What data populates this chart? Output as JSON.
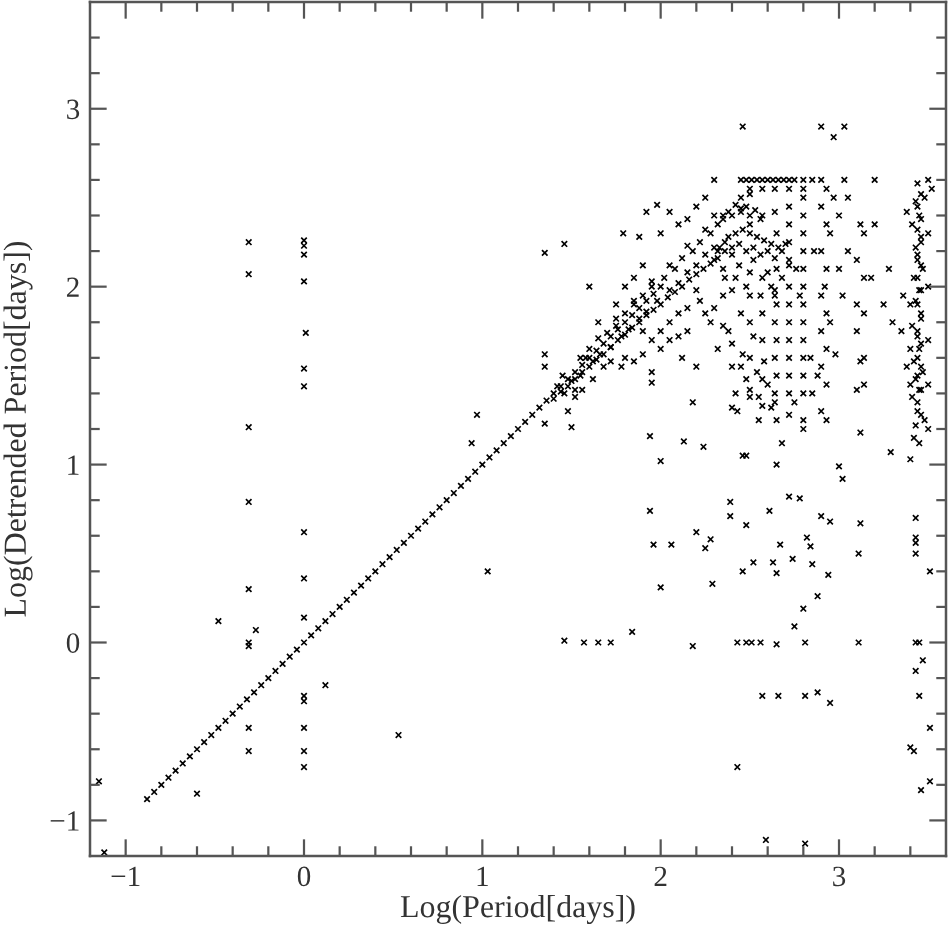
{
  "chart_data": {
    "type": "scatter",
    "xlabel": "Log(Period[days])",
    "ylabel": "Log(Detrended Period[days])",
    "marker": "cross",
    "xlim": [
      -1.2,
      3.6
    ],
    "ylim": [
      -1.2,
      3.6
    ],
    "xticks": [
      {
        "value": -1,
        "label": "−1"
      },
      {
        "value": -0.8,
        "label": null
      },
      {
        "value": -0.6,
        "label": null
      },
      {
        "value": -0.4,
        "label": null
      },
      {
        "value": -0.2,
        "label": null
      },
      0,
      {
        "value": 0.2,
        "label": null
      },
      {
        "value": 0.4,
        "label": null
      },
      {
        "value": 0.6,
        "label": null
      },
      {
        "value": 0.8,
        "label": null
      },
      1,
      {
        "value": 1.2,
        "label": null
      },
      {
        "value": 1.4,
        "label": null
      },
      {
        "value": 1.6,
        "label": null
      },
      {
        "value": 1.8,
        "label": null
      },
      2,
      {
        "value": 2.2,
        "label": null
      },
      {
        "value": 2.4,
        "label": null
      },
      {
        "value": 2.6,
        "label": null
      },
      {
        "value": 2.8,
        "label": null
      },
      3,
      {
        "value": 3.2,
        "label": null
      },
      {
        "value": 3.4,
        "label": null
      }
    ],
    "yticks": [
      {
        "value": -1,
        "label": "−1"
      },
      {
        "value": -0.8,
        "label": null
      },
      {
        "value": -0.6,
        "label": null
      },
      {
        "value": -0.4,
        "label": null
      },
      {
        "value": -0.2,
        "label": null
      },
      0,
      {
        "value": 0.2,
        "label": null
      },
      {
        "value": 0.4,
        "label": null
      },
      {
        "value": 0.6,
        "label": null
      },
      {
        "value": 0.8,
        "label": null
      },
      1,
      {
        "value": 1.2,
        "label": null
      },
      {
        "value": 1.4,
        "label": null
      },
      {
        "value": 1.6,
        "label": null
      },
      {
        "value": 1.8,
        "label": null
      },
      2,
      {
        "value": 2.2,
        "label": null
      },
      {
        "value": 2.4,
        "label": null
      },
      {
        "value": 2.6,
        "label": null
      },
      {
        "value": 2.8,
        "label": null
      },
      3,
      {
        "value": 3.2,
        "label": null
      },
      {
        "value": 3.4,
        "label": null
      }
    ],
    "series": [
      {
        "color": "#000000",
        "x": [
          -0.88,
          -0.84,
          -0.8,
          -0.76,
          -0.72,
          -0.68,
          -0.64,
          -0.6,
          -0.56,
          -0.52,
          -0.48,
          -0.44,
          -0.4,
          -0.36,
          -0.32,
          -0.28,
          -0.24,
          -0.2,
          -0.16,
          -0.12,
          -0.08,
          -0.04,
          0,
          0.04,
          0.08,
          0.12,
          0.16,
          0.2,
          0.24,
          0.28,
          0.32,
          0.36,
          0.4,
          0.44,
          0.48,
          0.52,
          0.56,
          0.6,
          0.64,
          0.68,
          0.72,
          0.76,
          0.8,
          0.84,
          0.88,
          0.92,
          0.96,
          1.0,
          1.04,
          1.08,
          1.12,
          1.16,
          1.2,
          1.24,
          1.28,
          1.32,
          1.36,
          1.4,
          1.44,
          1.48,
          1.52,
          1.56,
          1.6,
          1.64,
          1.68,
          1.72,
          1.76,
          1.8,
          1.84,
          1.88,
          1.92,
          1.96,
          2.0
        ],
        "values": [
          -0.88,
          -0.84,
          -0.8,
          -0.76,
          -0.72,
          -0.68,
          -0.64,
          -0.6,
          -0.56,
          -0.52,
          -0.48,
          -0.44,
          -0.4,
          -0.36,
          -0.32,
          -0.28,
          -0.24,
          -0.2,
          -0.16,
          -0.12,
          -0.08,
          -0.04,
          0,
          0.04,
          0.08,
          0.12,
          0.16,
          0.2,
          0.24,
          0.28,
          0.32,
          0.36,
          0.4,
          0.44,
          0.48,
          0.52,
          0.56,
          0.6,
          0.64,
          0.68,
          0.72,
          0.76,
          0.8,
          0.84,
          0.88,
          0.92,
          0.96,
          1.0,
          1.04,
          1.08,
          1.12,
          1.16,
          1.2,
          1.24,
          1.28,
          1.32,
          1.36,
          1.4,
          1.44,
          1.48,
          1.52,
          1.56,
          1.6,
          1.64,
          1.68,
          1.72,
          1.76,
          1.8,
          1.84,
          1.88,
          1.92,
          1.96,
          2.0
        ]
      },
      {
        "color": "#000000",
        "x": [
          1.42,
          1.46,
          1.5,
          1.52,
          1.55,
          1.58,
          1.62,
          1.6,
          1.66,
          1.7,
          1.72,
          1.75,
          1.78,
          1.8,
          1.82,
          1.85,
          1.88,
          1.9,
          1.92,
          1.95,
          1.98,
          2.02,
          2.05,
          2.08,
          2.1,
          2.12,
          2.15,
          2.18,
          2.2,
          2.22,
          2.25,
          2.28,
          2.3,
          1.48,
          1.52,
          1.56,
          1.62,
          1.68,
          1.72,
          1.78,
          1.8,
          1.85,
          1.9,
          1.95,
          1.95,
          1.65,
          1.75,
          1.8,
          1.85,
          1.9,
          1.92,
          1.98,
          2.0,
          1.88,
          2.05,
          2.1,
          2.15,
          2.2,
          2.25,
          2.3,
          2.0,
          2.05,
          2.1,
          2.12,
          2.15,
          2.2,
          2.18,
          2.22,
          2.28,
          2.32,
          2.32,
          2.35,
          2.38,
          2.4,
          2.42,
          2.45,
          2.48,
          2.5,
          2.53,
          2.56,
          2.45,
          2.5,
          2.32,
          2.36,
          2.4,
          2.44,
          2.48,
          2.52,
          2.56,
          2.6,
          2.64,
          2.68,
          2.72,
          2.76,
          2.35,
          2.42,
          2.5,
          2.35,
          2.38,
          2.4,
          2.42,
          2.43,
          2.45,
          2.46,
          2.48,
          2.5,
          2.52,
          2.54,
          2.55,
          2.57,
          2.58,
          2.6,
          2.62,
          2.62,
          2.65,
          2.65,
          2.65,
          2.65,
          2.65,
          2.65,
          2.68,
          2.72,
          2.72,
          2.72,
          2.72,
          2.72,
          2.72,
          2.75,
          2.78,
          2.8,
          2.8,
          2.8,
          2.8,
          2.8,
          2.8,
          2.8,
          2.84,
          2.85,
          2.86,
          2.88,
          2.9,
          2.9,
          2.9,
          2.9,
          2.9,
          2.9,
          2.92,
          2.95,
          2.95,
          2.97,
          3.0,
          3.0,
          3.02,
          3.05,
          3.1,
          3.1,
          3.1,
          3.12,
          3.1,
          3.12,
          3.12,
          3.2,
          3.18,
          3.25,
          3.3,
          3.28,
          3.05,
          2.98,
          2.3,
          2.45,
          2.48,
          2.51,
          2.54,
          2.57,
          2.6,
          2.63,
          2.66,
          2.69,
          2.72,
          2.75,
          2.8,
          2.85,
          2.9,
          3.03,
          3.2,
          3.5
        ],
        "values": [
          1.44,
          1.4,
          1.47,
          1.42,
          1.5,
          1.6,
          1.58,
          1.65,
          1.62,
          1.74,
          1.66,
          1.78,
          1.72,
          1.85,
          1.76,
          1.9,
          1.82,
          1.95,
          1.86,
          2.0,
          1.92,
          2.05,
          1.98,
          2.1,
          2.02,
          2.16,
          2.08,
          2.2,
          2.12,
          2.25,
          2.18,
          2.3,
          2.22,
          1.3,
          1.38,
          1.42,
          1.48,
          1.55,
          1.58,
          1.55,
          1.6,
          1.58,
          1.62,
          1.52,
          1.46,
          1.8,
          1.9,
          2.0,
          2.05,
          2.12,
          2.42,
          2.46,
          2.3,
          2.28,
          2.42,
          2.35,
          2.38,
          2.45,
          2.5,
          2.4,
          1.75,
          1.7,
          1.85,
          1.6,
          1.75,
          1.55,
          1.35,
          1.92,
          1.8,
          1.65,
          2.35,
          2.38,
          2.42,
          2.4,
          2.46,
          2.42,
          2.45,
          2.4,
          2.43,
          2.38,
          2.5,
          2.52,
          2.2,
          2.25,
          2.18,
          2.24,
          2.2,
          2.22,
          2.18,
          2.2,
          2.16,
          2.2,
          2.12,
          2.1,
          2.1,
          2.05,
          2.08,
          1.95,
          1.75,
          1.55,
          1.4,
          1.3,
          1.85,
          1.62,
          1.48,
          1.95,
          1.72,
          1.52,
          1.38,
          1.85,
          1.58,
          1.45,
          1.32,
          2.0,
          2.3,
          2.1,
          1.9,
          1.7,
          1.5,
          1.25,
          1.12,
          2.45,
          2.25,
          2.0,
          1.8,
          1.6,
          1.4,
          1.35,
          1.95,
          2.5,
          2.3,
          2.1,
          1.9,
          1.7,
          1.5,
          1.25,
          1.6,
          1.4,
          2.2,
          1.5,
          2.45,
          2.2,
          1.95,
          1.75,
          1.55,
          1.3,
          2.0,
          2.3,
          1.8,
          2.5,
          2.4,
          2.1,
          1.95,
          2.2,
          2.15,
          1.9,
          1.75,
          1.58,
          1.42,
          1.18,
          2.35,
          2.35,
          2.05,
          1.9,
          1.8,
          2.1,
          2.5,
          1.62,
          2.6,
          2.6,
          2.6,
          2.6,
          2.6,
          2.6,
          2.6,
          2.6,
          2.6,
          2.6,
          2.6,
          2.6,
          2.6,
          2.6,
          2.6,
          2.6,
          2.6,
          2.6
        ]
      },
      {
        "color": "#000000",
        "x": [
          1.4,
          1.44,
          1.48,
          1.52,
          1.56,
          1.6,
          1.64,
          1.68,
          1.72,
          1.76,
          1.8,
          1.84,
          1.88,
          1.92,
          1.96,
          2.0,
          2.04,
          2.08,
          2.12,
          2.16,
          2.2,
          2.24,
          2.28,
          2.32,
          2.36,
          2.4,
          1.45,
          1.55,
          1.65,
          1.75,
          1.85,
          1.95,
          2.05,
          2.15,
          2.25,
          2.35,
          2.45,
          2.3,
          2.33,
          2.38,
          2.42,
          2.46,
          2.5,
          2.54,
          2.58,
          2.62,
          2.66,
          2.7,
          2.36,
          2.44,
          2.52,
          2.6,
          2.68,
          2.4,
          2.48,
          2.56,
          2.64,
          2.5,
          2.5,
          2.5,
          2.5,
          2.5,
          2.57,
          2.57,
          2.57,
          2.57,
          2.57,
          2.57,
          2.64,
          2.64,
          2.64,
          2.64,
          2.64,
          2.64,
          2.64,
          2.72,
          2.72,
          2.72,
          2.72,
          2.72,
          2.72,
          2.72,
          2.8,
          2.8,
          2.8,
          2.8,
          2.8,
          2.8,
          2.8,
          2.8,
          2.93,
          2.93,
          2.93,
          2.93,
          2.93,
          2.93,
          2.93,
          3.14,
          3.14,
          3.14,
          3.14,
          3.14,
          3.44,
          3.46,
          3.44,
          3.46,
          3.44,
          3.46,
          3.44,
          3.46,
          3.44,
          3.46,
          3.44,
          3.46,
          3.44,
          3.46,
          3.44,
          3.46,
          3.44,
          3.46,
          3.44,
          3.46,
          1.9,
          1.95,
          2.0,
          2.05,
          2.1,
          2.15,
          2.2,
          2.25,
          2.3,
          2.35,
          2.4,
          2.45,
          2.5,
          2.55,
          2.4
        ],
        "values": [
          1.37,
          1.41,
          1.44,
          1.48,
          1.52,
          1.55,
          1.59,
          1.62,
          1.66,
          1.7,
          1.73,
          1.77,
          1.8,
          1.84,
          1.87,
          1.9,
          1.94,
          1.97,
          2.0,
          2.04,
          2.07,
          2.1,
          2.13,
          2.16,
          2.2,
          2.22,
          1.5,
          1.6,
          1.71,
          1.82,
          1.92,
          2.03,
          2.12,
          2.23,
          2.32,
          2.4,
          2.44,
          2.15,
          2.22,
          2.28,
          2.3,
          2.32,
          2.3,
          2.28,
          2.26,
          2.24,
          2.22,
          2.24,
          2.05,
          2.12,
          2.15,
          2.08,
          2.05,
          1.98,
          2.0,
          1.95,
          1.98,
          2.55,
          2.35,
          1.8,
          1.6,
          1.42,
          2.55,
          2.4,
          2.05,
          1.7,
          1.48,
          1.33,
          2.55,
          2.42,
          1.95,
          1.8,
          1.6,
          1.4,
          1.35,
          2.55,
          2.35,
          2.15,
          1.9,
          1.7,
          1.5,
          1.28,
          2.55,
          2.4,
          2.2,
          2.0,
          1.8,
          1.6,
          1.4,
          1.2,
          2.55,
          2.35,
          2.1,
          1.85,
          1.65,
          1.45,
          1.25,
          2.3,
          2.05,
          1.85,
          1.6,
          1.45,
          2.58,
          2.52,
          2.45,
          2.38,
          2.32,
          2.25,
          2.18,
          2.12,
          2.05,
          1.98,
          1.9,
          1.82,
          1.75,
          1.68,
          1.6,
          1.55,
          1.5,
          1.42,
          1.35,
          1.28,
          1.75,
          1.7,
          1.65,
          1.8,
          1.72,
          1.88,
          1.98,
          1.85,
          1.88,
          1.78,
          1.68,
          1.55,
          1.38,
          1.25,
          1.32
        ]
      },
      {
        "color": "#000000",
        "x": [
          3.4,
          3.42,
          3.45,
          3.43,
          3.48,
          3.44,
          3.41,
          3.45,
          3.43,
          3.47,
          3.42,
          3.45,
          3.44,
          3.41,
          3.46,
          3.43,
          3.45,
          3.42,
          3.47,
          3.44,
          3.43,
          3.46,
          3.41,
          3.45,
          3.43,
          3.38,
          3.48,
          3.5,
          3.5,
          3.5,
          3.5,
          3.5,
          3.35,
          3.38,
          3.36,
          3.52,
          3.4,
          3.4,
          3.4
        ],
        "values": [
          1.03,
          1.15,
          1.12,
          1.22,
          1.25,
          1.3,
          1.38,
          1.42,
          1.48,
          1.52,
          1.58,
          1.65,
          1.72,
          1.78,
          1.85,
          1.92,
          1.98,
          2.05,
          2.1,
          2.15,
          2.22,
          2.28,
          2.35,
          2.4,
          2.48,
          2.42,
          2.5,
          2.3,
          2.0,
          1.7,
          1.45,
          1.2,
          1.75,
          1.55,
          1.95,
          2.55,
          1.9,
          1.65,
          1.45
        ]
      },
      {
        "color": "#000000",
        "x": [
          -1.15,
          -1.12,
          -0.6,
          -0.48,
          -0.31,
          -0.31,
          -0.31,
          -0.31,
          -0.31,
          -0.31,
          -0.31,
          -0.27,
          -0.31,
          -0.31,
          0,
          0,
          0,
          0,
          0.01,
          0,
          0,
          0,
          0,
          0,
          0,
          0,
          0,
          0,
          0,
          0.12,
          0.53,
          0.97,
          0.94,
          1.03,
          1.46,
          1.57,
          1.65,
          1.72,
          1.84,
          1.35,
          1.35,
          1.35,
          1.35,
          1.46,
          1.5,
          1.6,
          1.79,
          1.94,
          1.94,
          1.96,
          2.0,
          2.0,
          2.06,
          2.13,
          2.18,
          2.24,
          2.2,
          2.25,
          2.28,
          2.29,
          2.39,
          2.39,
          2.43,
          2.46,
          2.48,
          2.46,
          2.48,
          2.52,
          2.43,
          2.48,
          2.51,
          2.56,
          2.57,
          2.59,
          2.61,
          2.63,
          2.65,
          2.66,
          2.65,
          2.67,
          2.65,
          2.72,
          2.74,
          2.75,
          2.78,
          2.8,
          2.81,
          2.81,
          2.81,
          2.82,
          2.84,
          2.85,
          2.88,
          2.88,
          2.94,
          2.95,
          2.9,
          2.95,
          3.0,
          3.02,
          3.11,
          3.12,
          3.11,
          3.29,
          3.4,
          3.42,
          3.43,
          3.45,
          3.45,
          3.47,
          3.43,
          3.46,
          3.51,
          3.51,
          3.51,
          3.43,
          3.43,
          3.43,
          3.43,
          2.46,
          2.9,
          3.03,
          2.97
        ],
        "values": [
          -0.78,
          -1.18,
          -0.85,
          0.12,
          2.25,
          2.07,
          1.21,
          0.79,
          0.3,
          0.0,
          -0.02,
          0.07,
          -0.48,
          -0.61,
          2.26,
          2.23,
          2.18,
          2.03,
          1.74,
          1.54,
          1.44,
          0.62,
          0.36,
          0.14,
          -0.3,
          -0.33,
          -0.48,
          -0.61,
          -0.7,
          -0.24,
          -0.52,
          1.28,
          1.12,
          0.4,
          0.01,
          0,
          0,
          0,
          0.06,
          1.62,
          1.55,
          1.23,
          2.19,
          2.24,
          1.21,
          2.0,
          2.3,
          1.16,
          0.74,
          0.55,
          1.02,
          0.31,
          0.55,
          1.13,
          -0.02,
          1.1,
          0.62,
          0.53,
          0.58,
          0.33,
          0.79,
          0.71,
          -0.7,
          1.05,
          1.05,
          0.4,
          0.66,
          0.45,
          0,
          0,
          0,
          0,
          -0.3,
          -1.11,
          0.74,
          0.45,
          -0.01,
          -0.3,
          1.0,
          0.55,
          0.39,
          0.82,
          0.47,
          0.09,
          0.81,
          0.19,
          0,
          -0.3,
          -1.13,
          0.59,
          0.54,
          0.44,
          -0.28,
          0.26,
          0.38,
          -0.34,
          0.71,
          0.68,
          0.99,
          0.92,
          0,
          0.67,
          0.5,
          1.07,
          -0.59,
          -0.61,
          0,
          0,
          -0.3,
          -0.1,
          -0.16,
          -0.83,
          -0.78,
          -0.48,
          0.4,
          0.7,
          0.59,
          0.5,
          0.56,
          2.9,
          2.9,
          2.9,
          2.84
        ]
      }
    ]
  }
}
